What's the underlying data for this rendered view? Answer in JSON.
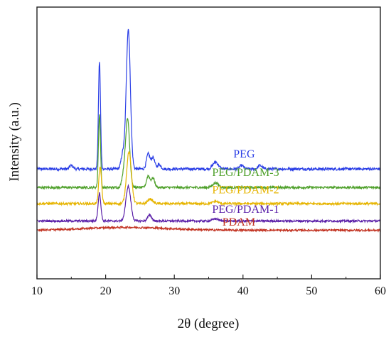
{
  "chart_data": {
    "type": "line",
    "title": "",
    "xlabel": "2θ (degree)",
    "ylabel": "Intensity (a.u.)",
    "xlim": [
      10,
      60
    ],
    "x_ticks": [
      "10",
      "20",
      "30",
      "40",
      "50",
      "60"
    ],
    "y_ticks_shown": false,
    "grid": false,
    "legend": "inline labels next to each curve",
    "series": [
      {
        "name": "PEG",
        "color": "#2b3fe6",
        "baseline": 0.45,
        "noise": 0.012,
        "peaks": [
          {
            "x": 15.0,
            "h": 0.03,
            "w": 0.25
          },
          {
            "x": 19.1,
            "h": 0.93,
            "w": 0.15
          },
          {
            "x": 22.5,
            "h": 0.13,
            "w": 0.25
          },
          {
            "x": 23.3,
            "h": 1.21,
            "w": 0.3
          },
          {
            "x": 26.2,
            "h": 0.13,
            "w": 0.25
          },
          {
            "x": 26.9,
            "h": 0.1,
            "w": 0.25
          },
          {
            "x": 27.8,
            "h": 0.04,
            "w": 0.25
          },
          {
            "x": 36.0,
            "h": 0.06,
            "w": 0.4
          },
          {
            "x": 39.8,
            "h": 0.03,
            "w": 0.3
          },
          {
            "x": 42.5,
            "h": 0.03,
            "w": 0.3
          }
        ]
      },
      {
        "name": "PEG/PDAM-3",
        "color": "#4ea02a",
        "baseline": 0.29,
        "noise": 0.01,
        "peaks": [
          {
            "x": 19.1,
            "h": 0.63,
            "w": 0.15
          },
          {
            "x": 22.6,
            "h": 0.1,
            "w": 0.25
          },
          {
            "x": 23.2,
            "h": 0.59,
            "w": 0.3
          },
          {
            "x": 26.2,
            "h": 0.1,
            "w": 0.25
          },
          {
            "x": 26.9,
            "h": 0.08,
            "w": 0.25
          },
          {
            "x": 36.0,
            "h": 0.04,
            "w": 0.4
          }
        ]
      },
      {
        "name": "PEG/PDAM-2",
        "color": "#e6b400",
        "baseline": 0.15,
        "noise": 0.01,
        "peaks": [
          {
            "x": 19.2,
            "h": 0.32,
            "w": 0.2
          },
          {
            "x": 23.4,
            "h": 0.45,
            "w": 0.35
          },
          {
            "x": 26.5,
            "h": 0.04,
            "w": 0.35
          },
          {
            "x": 36.0,
            "h": 0.02,
            "w": 0.4
          }
        ]
      },
      {
        "name": "PEG/PDAM-1",
        "color": "#5a1fa8",
        "baseline": 0.0,
        "noise": 0.009,
        "peaks": [
          {
            "x": 19.1,
            "h": 0.24,
            "w": 0.2
          },
          {
            "x": 23.3,
            "h": 0.3,
            "w": 0.35
          },
          {
            "x": 26.4,
            "h": 0.05,
            "w": 0.3
          },
          {
            "x": 36.0,
            "h": 0.02,
            "w": 0.4
          }
        ]
      },
      {
        "name": "PDAM",
        "color": "#c23322",
        "baseline": -0.08,
        "noise": 0.008,
        "hump": {
          "x": 23.0,
          "h": 0.025,
          "w": 6.0
        },
        "peaks": []
      }
    ],
    "labels": [
      {
        "series": "PEG",
        "text": "PEG",
        "x": 38.6
      },
      {
        "series": "PEG/PDAM-3",
        "text": "PEG/PDAM-3",
        "x": 35.5
      },
      {
        "series": "PEG/PDAM-2",
        "text": "PEG/PDAM-2",
        "x": 35.5
      },
      {
        "series": "PEG/PDAM-1",
        "text": "PEG/PDAM-1",
        "x": 35.5
      },
      {
        "series": "PDAM",
        "text": "PDAM",
        "x": 37.0
      }
    ]
  }
}
